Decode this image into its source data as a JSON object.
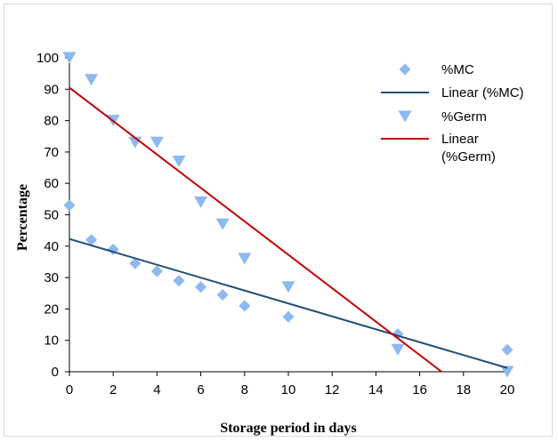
{
  "chart_data": {
    "type": "scatter",
    "title": "",
    "xlabel": "Storage period in days",
    "ylabel": "Percentage",
    "xlim": [
      0,
      20
    ],
    "ylim": [
      0,
      100
    ],
    "x_ticks": [
      "0",
      "2",
      "4",
      "6",
      "8",
      "10",
      "12",
      "14",
      "16",
      "18",
      "20"
    ],
    "y_ticks": [
      "0",
      "10",
      "20",
      "30",
      "40",
      "50",
      "60",
      "70",
      "80",
      "90",
      "100"
    ],
    "grid": false,
    "legend_position": "top-right",
    "series": [
      {
        "name": "%MC",
        "kind": "scatter",
        "marker": "diamond",
        "color": "#8db8f0",
        "points": [
          [
            0,
            53
          ],
          [
            1,
            42
          ],
          [
            2,
            39
          ],
          [
            3,
            34.5
          ],
          [
            4,
            32
          ],
          [
            5,
            29
          ],
          [
            6,
            27
          ],
          [
            7,
            24.5
          ],
          [
            8,
            21
          ],
          [
            10,
            17.5
          ],
          [
            15,
            12
          ],
          [
            20,
            7
          ]
        ]
      },
      {
        "name": "Linear (%MC)",
        "kind": "trendline",
        "color": "#1f4e79",
        "points": [
          [
            0,
            42.3
          ],
          [
            20,
            1.2
          ]
        ]
      },
      {
        "name": "%Germ",
        "kind": "scatter",
        "marker": "triangle-down",
        "color": "#8db8f0",
        "points": [
          [
            0,
            100
          ],
          [
            1,
            93
          ],
          [
            2,
            80
          ],
          [
            3,
            73
          ],
          [
            4,
            73
          ],
          [
            5,
            67
          ],
          [
            6,
            54
          ],
          [
            7,
            47
          ],
          [
            8,
            36
          ],
          [
            10,
            27
          ],
          [
            15,
            7
          ],
          [
            20,
            0
          ]
        ]
      },
      {
        "name": "Linear\n(%Germ)",
        "kind": "trendline",
        "color": "#c00000",
        "points": [
          [
            0,
            90.5
          ],
          [
            17,
            0
          ]
        ]
      }
    ]
  }
}
